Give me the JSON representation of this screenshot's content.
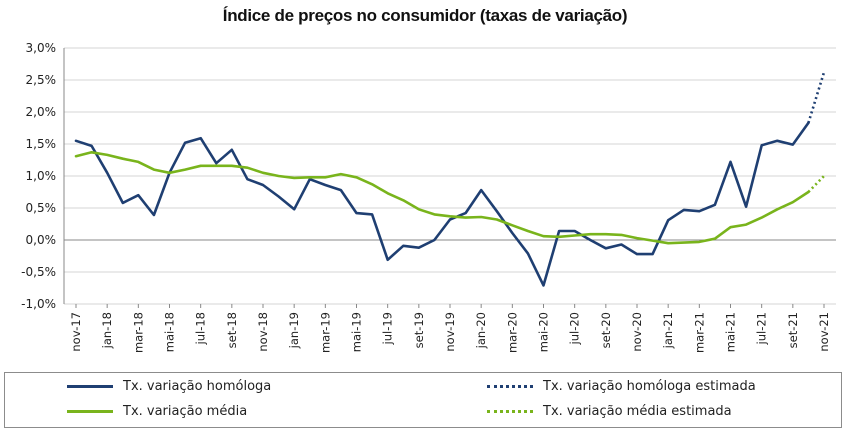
{
  "chart_data": {
    "type": "line",
    "title": "Índice de preços no consumidor  (taxas  de variação)",
    "xlabel": "",
    "ylabel": "",
    "ylim": [
      -1.0,
      3.0
    ],
    "y_ticks": [
      "3,0%",
      "2,5%",
      "2,0%",
      "1,5%",
      "1,0%",
      "0,5%",
      "0,0%",
      "-0,5%",
      "-1,0%"
    ],
    "y_tick_values": [
      3.0,
      2.5,
      2.0,
      1.5,
      1.0,
      0.5,
      0.0,
      -0.5,
      -1.0
    ],
    "x_ticks": [
      "nov-17",
      "jan-18",
      "mar-18",
      "mai-18",
      "jul-18",
      "set-18",
      "nov-18",
      "jan-19",
      "mar-19",
      "mai-19",
      "jul-19",
      "set-19",
      "nov-19",
      "jan-20",
      "mar-20",
      "mai-20",
      "jul-20",
      "set-20",
      "nov-20",
      "jan-21",
      "mar-21",
      "mai-21",
      "jul-21",
      "set-21",
      "nov-21"
    ],
    "grid": "horizontal",
    "legend_position": "bottom",
    "categories": [
      "nov-17",
      "dez-17",
      "jan-18",
      "fev-18",
      "mar-18",
      "abr-18",
      "mai-18",
      "jun-18",
      "jul-18",
      "ago-18",
      "set-18",
      "out-18",
      "nov-18",
      "dez-18",
      "jan-19",
      "fev-19",
      "mar-19",
      "abr-19",
      "mai-19",
      "jun-19",
      "jul-19",
      "ago-19",
      "set-19",
      "out-19",
      "nov-19",
      "dez-19",
      "jan-20",
      "fev-20",
      "mar-20",
      "abr-20",
      "mai-20",
      "jun-20",
      "jul-20",
      "ago-20",
      "set-20",
      "out-20",
      "nov-20",
      "dez-20",
      "jan-21",
      "fev-21",
      "mar-21",
      "abr-21",
      "mai-21",
      "jun-21",
      "jul-21",
      "ago-21",
      "set-21",
      "out-21",
      "nov-21"
    ],
    "series": [
      {
        "name": "Tx. variação homóloga",
        "color": "#1f3f72",
        "style": "solid",
        "values": [
          1.55,
          1.47,
          1.05,
          0.58,
          0.7,
          0.39,
          1.05,
          1.52,
          1.59,
          1.2,
          1.41,
          0.95,
          0.86,
          0.68,
          0.48,
          0.95,
          0.86,
          0.78,
          0.42,
          0.4,
          -0.31,
          -0.09,
          -0.12,
          0.0,
          0.32,
          0.42,
          0.78,
          0.45,
          0.11,
          -0.21,
          -0.71,
          0.14,
          0.14,
          0.0,
          -0.13,
          -0.07,
          -0.22,
          -0.22,
          0.31,
          0.47,
          0.45,
          0.55,
          1.22,
          0.52,
          1.48,
          1.55,
          1.49,
          1.83,
          null
        ]
      },
      {
        "name": "Tx. variação homóloga estimada",
        "color": "#1f3f72",
        "style": "dotted",
        "values": [
          null,
          null,
          null,
          null,
          null,
          null,
          null,
          null,
          null,
          null,
          null,
          null,
          null,
          null,
          null,
          null,
          null,
          null,
          null,
          null,
          null,
          null,
          null,
          null,
          null,
          null,
          null,
          null,
          null,
          null,
          null,
          null,
          null,
          null,
          null,
          null,
          null,
          null,
          null,
          null,
          null,
          null,
          null,
          null,
          null,
          null,
          null,
          1.83,
          2.62
        ]
      },
      {
        "name": "Tx. variação média",
        "color": "#79b41c",
        "style": "solid",
        "values": [
          1.31,
          1.37,
          1.33,
          1.27,
          1.22,
          1.1,
          1.05,
          1.1,
          1.16,
          1.16,
          1.16,
          1.13,
          1.05,
          1.0,
          0.97,
          0.98,
          0.98,
          1.03,
          0.98,
          0.87,
          0.73,
          0.62,
          0.48,
          0.4,
          0.37,
          0.35,
          0.36,
          0.32,
          0.23,
          0.14,
          0.06,
          0.05,
          0.07,
          0.09,
          0.09,
          0.08,
          0.03,
          -0.01,
          -0.05,
          -0.04,
          -0.03,
          0.02,
          0.2,
          0.24,
          0.35,
          0.48,
          0.59,
          0.75,
          null
        ]
      },
      {
        "name": "Tx. variação média  estimada",
        "color": "#79b41c",
        "style": "dotted",
        "values": [
          null,
          null,
          null,
          null,
          null,
          null,
          null,
          null,
          null,
          null,
          null,
          null,
          null,
          null,
          null,
          null,
          null,
          null,
          null,
          null,
          null,
          null,
          null,
          null,
          null,
          null,
          null,
          null,
          null,
          null,
          null,
          null,
          null,
          null,
          null,
          null,
          null,
          null,
          null,
          null,
          null,
          null,
          null,
          null,
          null,
          null,
          null,
          0.75,
          1.0
        ]
      }
    ]
  }
}
